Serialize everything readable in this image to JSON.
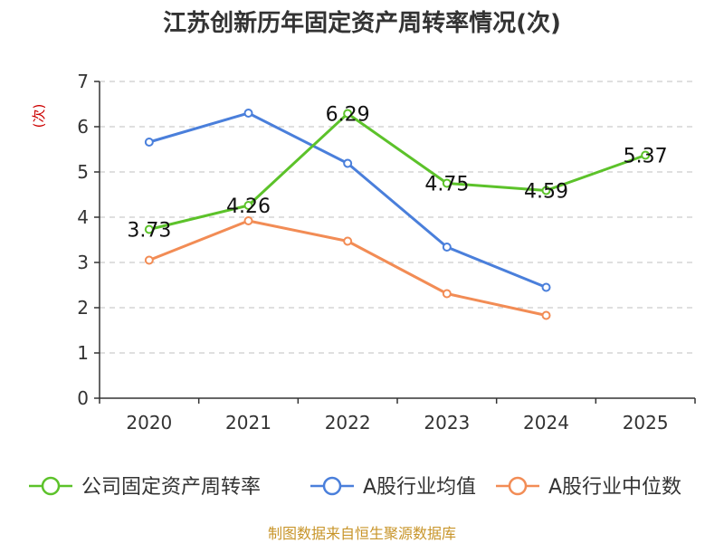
{
  "chart_data": {
    "type": "line",
    "title": "江苏创新历年固定资产周转率情况(次)",
    "ylabel": "(次)",
    "xlabel": "",
    "categories": [
      "2020",
      "2021",
      "2022",
      "2023",
      "2024",
      "2025"
    ],
    "ylim": [
      0,
      7
    ],
    "yticks": [
      0,
      1,
      2,
      3,
      4,
      5,
      6,
      7
    ],
    "grid": true,
    "legend_position": "bottom",
    "series": [
      {
        "name": "公司固定资产周转率",
        "color": "#5cc22a",
        "values": [
          3.73,
          4.26,
          6.29,
          4.75,
          4.59,
          5.37
        ],
        "labels": [
          "3.73",
          "4.26",
          "6.29",
          "4.75",
          "4.59",
          "5.37"
        ]
      },
      {
        "name": "A股行业均值",
        "color": "#4a7fdb",
        "values": [
          5.66,
          6.3,
          5.19,
          3.34,
          2.45,
          null
        ]
      },
      {
        "name": "A股行业中位数",
        "color": "#f28c55",
        "values": [
          3.05,
          3.92,
          3.47,
          2.31,
          1.83,
          null
        ]
      }
    ]
  },
  "source": "制图数据来自恒生聚源数据库"
}
